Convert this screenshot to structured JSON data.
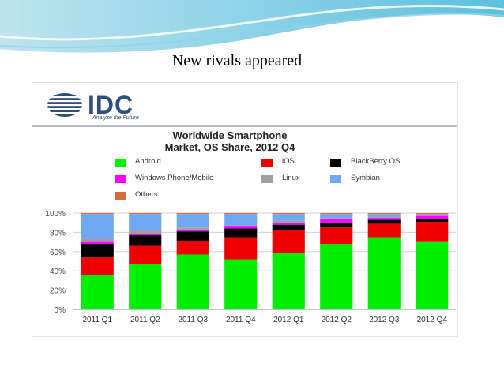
{
  "slide": {
    "title": "New rivals appeared",
    "logo_text": "IDC",
    "logo_tagline": "Analyze the Future"
  },
  "chart_data": {
    "type": "bar",
    "stacked": true,
    "title": "Worldwide Smartphone Market, OS Share, 2012 Q4",
    "title_lines": [
      "Worldwide Smartphone",
      "Market, OS Share, 2012 Q4"
    ],
    "categories": [
      "2011 Q1",
      "2011 Q2",
      "2011 Q3",
      "2011 Q4",
      "2012 Q1",
      "2012 Q2",
      "2012 Q3",
      "2012 Q4"
    ],
    "series": [
      {
        "name": "Android",
        "color": "#00ee00",
        "values": [
          36,
          47,
          57,
          52,
          59,
          68,
          75,
          70
        ]
      },
      {
        "name": "iOS",
        "color": "#ee0000",
        "values": [
          18,
          19,
          14,
          23,
          23,
          17,
          14,
          21
        ]
      },
      {
        "name": "BlackBerry OS",
        "color": "#000000",
        "values": [
          14,
          11,
          10,
          9,
          6,
          5,
          4,
          3
        ]
      },
      {
        "name": "Windows Phone/Mobile",
        "color": "#ff00ff",
        "values": [
          2,
          2,
          2,
          2,
          2,
          4,
          2,
          3
        ]
      },
      {
        "name": "Linux",
        "color": "#a0a0a0",
        "values": [
          3,
          3,
          2,
          1,
          2,
          1,
          1,
          1
        ]
      },
      {
        "name": "Symbian",
        "color": "#6fa8f5",
        "values": [
          26,
          17,
          14,
          12,
          7,
          4,
          3,
          1
        ]
      },
      {
        "name": "Others",
        "color": "#d86a3a",
        "values": [
          1,
          1,
          1,
          1,
          1,
          1,
          1,
          1
        ]
      }
    ],
    "y_ticks": [
      "0%",
      "20%",
      "40%",
      "60%",
      "80%",
      "100%"
    ],
    "ylim": [
      0,
      100
    ],
    "grid": true,
    "legend_position": "top"
  }
}
